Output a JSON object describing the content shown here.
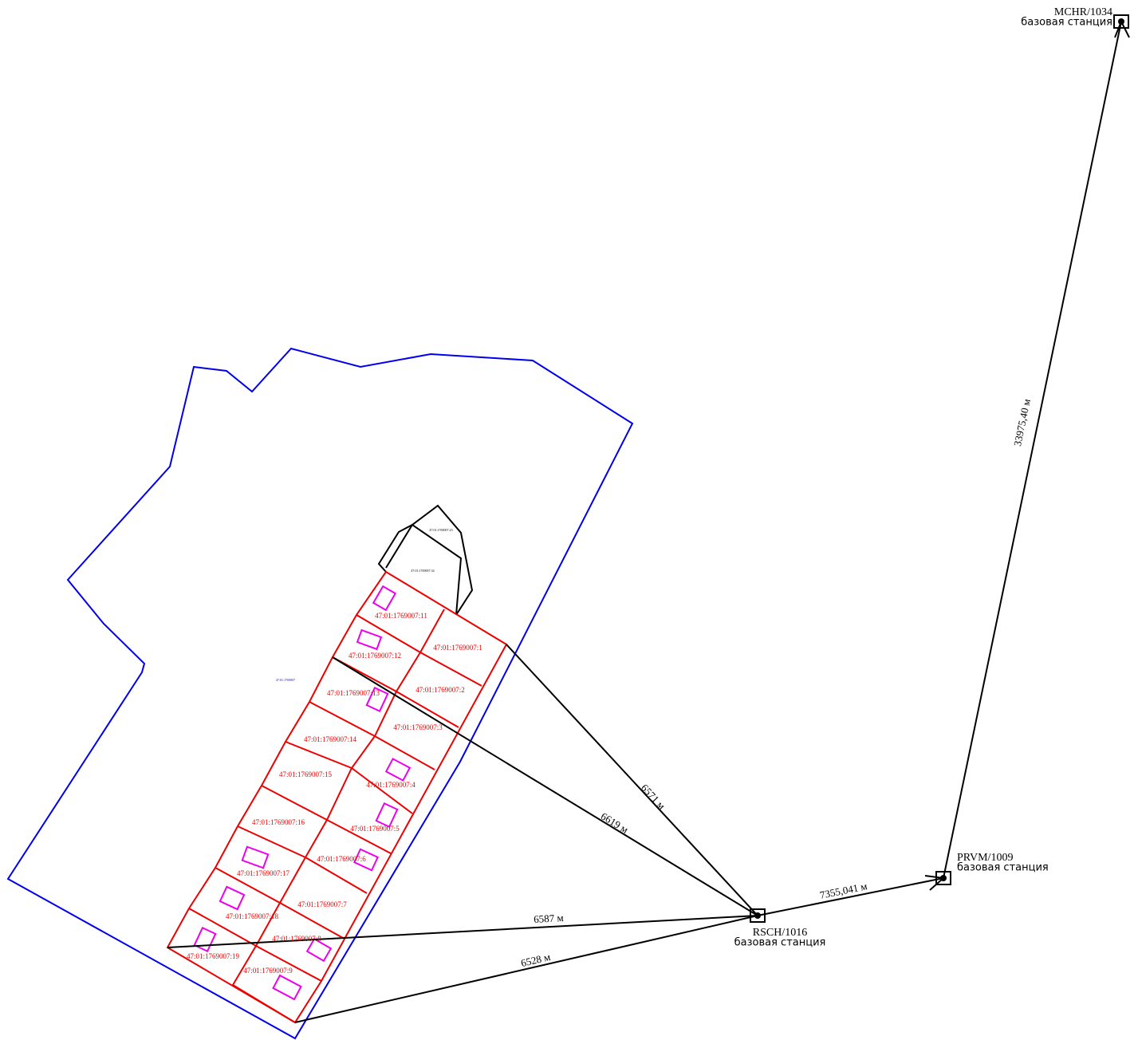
{
  "stations": [
    {
      "name": "MCHR/1034",
      "note": "базовая станция"
    },
    {
      "name": "PRVM/1009",
      "note": "базовая станция"
    },
    {
      "name": "RSCH/1016",
      "note": "базовая станция"
    }
  ],
  "distances": [
    "33975,40 м",
    "7355,041 м",
    "6571 м",
    "6619 м",
    "6587 м",
    "6528 м"
  ],
  "parcels": [
    "47:01:1769007:11",
    "47:01:1769007:12",
    "47:01:1769007:1",
    "47:01:1769007:2",
    "47:01:1769007:13",
    "47:01:1769007:3",
    "47:01:1769007:14",
    "47:01:1769007:15",
    "47:01:1769007:4",
    "47:01:1769007:16",
    "47:01:1769007:5",
    "47:01:1769007:17",
    "47:01:1769007:6",
    "47:01:1769007:18",
    "47:01:1769007:7",
    "47:01:1769007:8",
    "47:01:1769007:19",
    "47:01:1769007:9"
  ],
  "buildings": [
    "47:01:1769007:23",
    "47:01:1769007:34"
  ],
  "block": "47:01:1769007"
}
